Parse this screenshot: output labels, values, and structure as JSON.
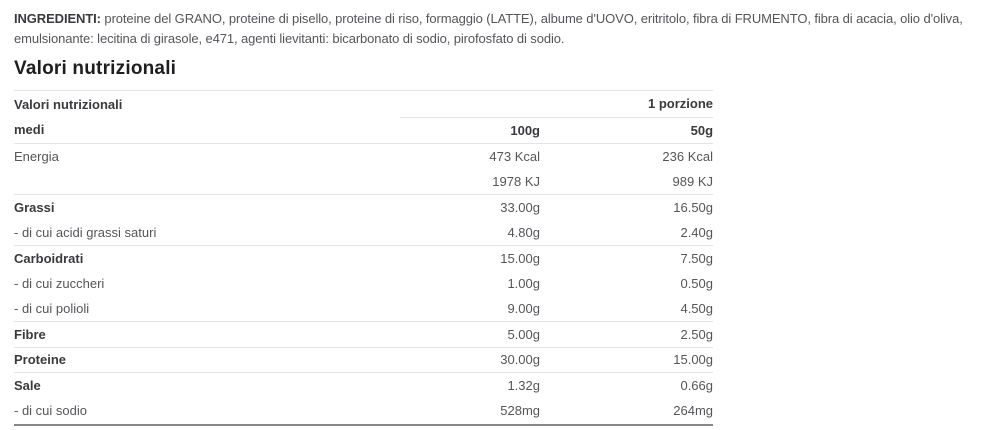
{
  "ingredients": {
    "label": "INGREDIENTI:",
    "text": " proteine del GRANO, proteine di pisello, proteine di riso, formaggio (LATTE), albume d'UOVO, eritritolo, fibra di FRUMENTO, fibra di acacia, olio d'oliva, emulsionante: lecitina di girasole, e471, agenti lievitanti: bicarbonato di sodio, pirofosfato di sodio."
  },
  "section": {
    "title": "Valori nutrizionali"
  },
  "table": {
    "header": {
      "title": "Valori nutrizionali",
      "portion": "1 porzione",
      "subtitle": "medi",
      "col_100g": "100g",
      "col_50g": "50g"
    },
    "rows": [
      {
        "label": "Energia",
        "v100": "473 Kcal",
        "v50": "236 Kcal"
      },
      {
        "label": "",
        "v100": "1978 KJ",
        "v50": "989 KJ"
      },
      {
        "label": "Grassi",
        "v100": "33.00g",
        "v50": "16.50g"
      },
      {
        "label": "- di cui acidi grassi saturi",
        "v100": "4.80g",
        "v50": "2.40g"
      },
      {
        "label": "Carboidrati",
        "v100": "15.00g",
        "v50": "7.50g"
      },
      {
        "label": "- di cui zuccheri",
        "v100": "1.00g",
        "v50": "0.50g"
      },
      {
        "label": "- di cui polioli",
        "v100": "9.00g",
        "v50": "4.50g"
      },
      {
        "label": "Fibre",
        "v100": "5.00g",
        "v50": "2.50g"
      },
      {
        "label": "Proteine",
        "v100": "30.00g",
        "v50": "15.00g"
      },
      {
        "label": "Sale",
        "v100": "1.32g",
        "v50": "0.66g"
      },
      {
        "label": "- di cui sodio",
        "v100": "528mg",
        "v50": "264mg"
      }
    ]
  },
  "colors": {
    "background": "#ffffff",
    "text_heading": "#1e1e20",
    "text_bold": "#3a3a3e",
    "text_body": "#55555a",
    "border_light": "#e4e4e4",
    "border_dark": "#85858a"
  }
}
